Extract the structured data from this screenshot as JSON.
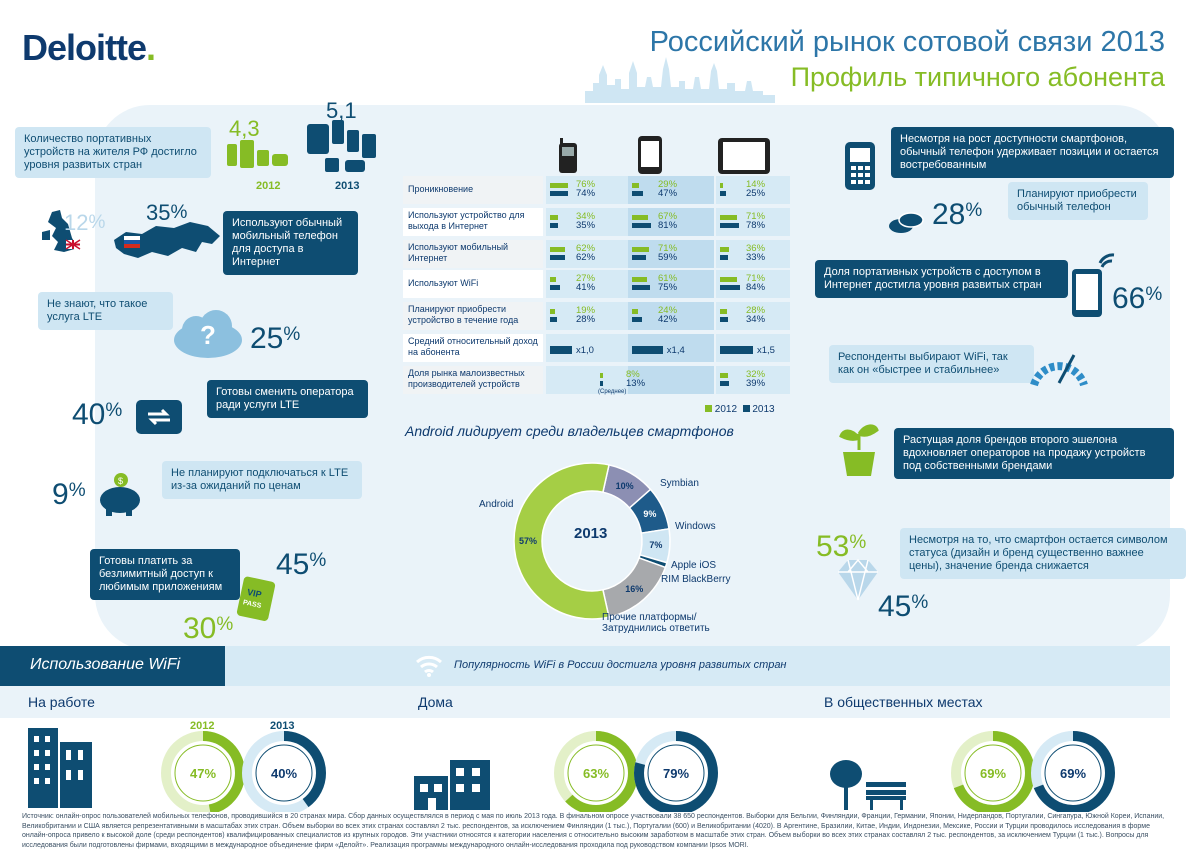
{
  "header": {
    "logo": "Deloitte",
    "logo_dot": ".",
    "title": "Российский рынок сотовой связи 2013",
    "subtitle": "Профиль типичного абонента"
  },
  "colors": {
    "green": "#86bc25",
    "navy": "#0e4d72",
    "light_blue": "#cfe6f3",
    "gray": "#a7a9ac"
  },
  "left": {
    "devices_text": "Количество портативных устройств на жителя РФ достигло уровня развитых стран",
    "devices_2012": "4,3",
    "devices_2013": "5,1",
    "year_2012": "2012",
    "year_2013": "2013",
    "uk_pct": "12",
    "ru_pct": "35",
    "pct_sign": "%",
    "basic_internet_text": "Используют обычный мобильный телефон для доступа в Интернет",
    "lte_unknown_text": "Не знают, что такое услуга LTE",
    "lte_unknown_pct": "25",
    "switch_text": "Готовы сменить оператора ради услуги LTE",
    "switch_pct": "40",
    "no_lte_text": "Не планируют подключаться к LTE из-за ожиданий по ценам",
    "no_lte_pct": "9",
    "unlimited_text": "Готовы платить за безлимитный доступ к любимым приложениям",
    "unlimited_2013": "45",
    "unlimited_2012": "30",
    "vip_label": "VIP PASS"
  },
  "table": {
    "rows": [
      {
        "label": "Проникновение",
        "c1": [
          "76%",
          "74%"
        ],
        "c2": [
          "29%",
          "47%"
        ],
        "c3": [
          "14%",
          "25%"
        ]
      },
      {
        "label": "Используют устройство для выхода в Интернет",
        "c1": [
          "34%",
          "35%"
        ],
        "c2": [
          "67%",
          "81%"
        ],
        "c3": [
          "71%",
          "78%"
        ]
      },
      {
        "label": "Используют мобильный Интернет",
        "c1": [
          "62%",
          "62%"
        ],
        "c2": [
          "71%",
          "59%"
        ],
        "c3": [
          "36%",
          "33%"
        ]
      },
      {
        "label": "Используют WiFi",
        "c1": [
          "27%",
          "41%"
        ],
        "c2": [
          "61%",
          "75%"
        ],
        "c3": [
          "71%",
          "84%"
        ]
      },
      {
        "label": "Планируют приобрести устройство в течение года",
        "c1": [
          "19%",
          "28%"
        ],
        "c2": [
          "24%",
          "42%"
        ],
        "c3": [
          "28%",
          "34%"
        ]
      },
      {
        "label": "Средний относительный доход на абонента",
        "c1": [
          "x1,0"
        ],
        "c2": [
          "x1,4"
        ],
        "c3": [
          "x1,5"
        ]
      },
      {
        "label": "Доля рынка малоизвестных производителей устройств",
        "c12": [
          "8%",
          "13%"
        ],
        "c12_note": "(Среднее)",
        "c3": [
          "32%",
          "39%"
        ]
      }
    ],
    "legend_2012": "2012",
    "legend_2013": "2013"
  },
  "donut": {
    "title": "Android лидирует среди владельцев смартфонов",
    "center": "2013",
    "slices": [
      {
        "name": "Android",
        "value": 57,
        "label": "57%"
      },
      {
        "name": "Symbian",
        "value": 10,
        "label": "10%"
      },
      {
        "name": "Windows",
        "value": 9,
        "label": "9%"
      },
      {
        "name": "Apple iOS",
        "value": 7,
        "label": "7%"
      },
      {
        "name": "RIM BlackBerry",
        "value": 1,
        "label": ""
      },
      {
        "name": "Прочие платформы/ Затруднились ответить",
        "value": 16,
        "label": "16%"
      }
    ]
  },
  "right": {
    "basic_phone_text": "Несмотря на рост доступности смартфонов, обычный телефон удерживает позиции и остается востребованным",
    "buy_basic_text": "Планируют приобрести обычный телефон",
    "buy_basic_pct": "28",
    "internet_share_text": "Доля портативных устройств с доступом в Интернет достигла уровня развитых стран",
    "internet_share_pct": "66",
    "wifi_choice_text": "Респонденты выбирают WiFi, так как он «быстрее и стабильнее»",
    "brands_text": "Растущая доля брендов второго эшелона вдохновляет операторов на продажу устройств под собственными брендами",
    "status_text": "Несмотря на то, что смартфон остается символом статуса (дизайн и бренд существенно важнее цены), значение бренда снижается",
    "status_2012": "53",
    "status_2013": "45"
  },
  "wifi": {
    "header": "Использование WiFi",
    "banner": "Популярность WiFi в России достигла уровня развитых стран",
    "work_label": "На работе",
    "home_label": "Дома",
    "public_label": "В общественных местах",
    "year_2012": "2012",
    "year_2013": "2013",
    "work": [
      47,
      40
    ],
    "home": [
      63,
      79
    ],
    "public": [
      69,
      69
    ],
    "work_labels": [
      "47%",
      "40%"
    ],
    "home_labels": [
      "63%",
      "79%"
    ],
    "public_labels": [
      "69%",
      "69%"
    ]
  },
  "footnote": "Источник: онлайн-опрос пользователей мобильных телефонов, проводившийся в 20 странах мира. Сбор данных осуществлялся в период с мая по июль 2013 года. В финальном опросе участвовали 38 650 респондентов. Выборки для Бельгии, Финляндии, Франции, Германии, Японии, Нидерландов, Португалии, Сингапура, Южной Кореи, Испании, Великобритании и США является репрезентативными в масштабах этих стран. Объем выборки во всех этих странах составлял 2 тыс. респондентов, за исключением Финляндии (1 тыс.), Португалии (600) и Великобритании (4020). В Аргентине, Бразилии, Китае, Индии, Индонезии, Мексике, России и Турции проводилось исследования в форме онлайн-опроса привело к высокой доле (среди респондентов) квалифицированных специалистов из крупных городов. Эти участники относятся к категории населения с относительно высоким заработком в масштабе этих стран. Объем выборки во всех этих странах составлял 2 тыс. респондентов, за исключением Турции (1 тыс.). Вопросы для исследования были подготовлены фирмами, входящими в международное объединение фирм «Делойт». Реализация программы международного онлайн-исследования проходила под руководством компании Ipsos MORI."
}
